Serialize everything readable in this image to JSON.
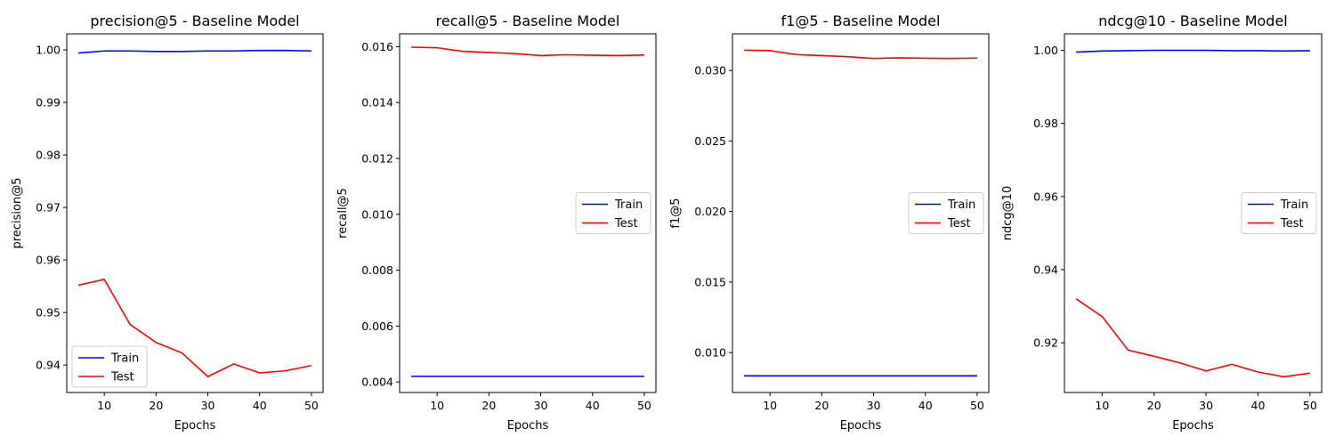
{
  "chart_data": [
    {
      "type": "line",
      "title": "precision@5 - Baseline Model",
      "xlabel": "Epochs",
      "ylabel": "precision@5",
      "x": [
        5,
        10,
        15,
        20,
        25,
        30,
        35,
        40,
        45,
        50
      ],
      "xlim": [
        2.75,
        52.25
      ],
      "ylim": [
        0.93477,
        1.00306
      ],
      "xticks": [
        "10",
        "20",
        "30",
        "40",
        "50"
      ],
      "yticks": [
        "0.94",
        "0.95",
        "0.96",
        "0.97",
        "0.98",
        "0.99",
        "1.00"
      ],
      "legend_position": "lower-left",
      "series": [
        {
          "name": "Train",
          "color": "#0000ff",
          "values": [
            0.9994,
            0.9998,
            0.9998,
            0.9997,
            0.9997,
            0.9998,
            0.9998,
            0.9999,
            0.9999,
            0.9998
          ]
        },
        {
          "name": "Test",
          "color": "#ff0000",
          "values": [
            0.9552,
            0.9563,
            0.9477,
            0.9443,
            0.9423,
            0.9378,
            0.9402,
            0.9385,
            0.9389,
            0.9399
          ]
        }
      ]
    },
    {
      "type": "line",
      "title": "recall@5 - Baseline Model",
      "xlabel": "Epochs",
      "ylabel": "recall@5",
      "x": [
        5,
        10,
        15,
        20,
        25,
        30,
        35,
        40,
        45,
        50
      ],
      "xlim": [
        2.75,
        52.25
      ],
      "ylim": [
        0.003623,
        0.016458
      ],
      "xticks": [
        "10",
        "20",
        "30",
        "40",
        "50"
      ],
      "yticks": [
        "0.004",
        "0.006",
        "0.008",
        "0.010",
        "0.012",
        "0.014",
        "0.016"
      ],
      "legend_position": "center-right",
      "series": [
        {
          "name": "Train",
          "color": "#0000ff",
          "values": [
            0.0042,
            0.0042,
            0.0042,
            0.0042,
            0.0042,
            0.0042,
            0.0042,
            0.0042,
            0.0042,
            0.0042
          ]
        },
        {
          "name": "Test",
          "color": "#ff0000",
          "values": [
            0.01598,
            0.01596,
            0.01583,
            0.01579,
            0.01575,
            0.01568,
            0.01571,
            0.01569,
            0.01568,
            0.0157
          ]
        }
      ]
    },
    {
      "type": "line",
      "title": "f1@5 - Baseline Model",
      "xlabel": "Epochs",
      "ylabel": "f1@5",
      "x": [
        5,
        10,
        15,
        20,
        25,
        30,
        35,
        40,
        45,
        50
      ],
      "xlim": [
        2.75,
        52.25
      ],
      "ylim": [
        0.00717,
        0.0326
      ],
      "xticks": [
        "10",
        "20",
        "30",
        "40",
        "50"
      ],
      "yticks": [
        "0.010",
        "0.015",
        "0.020",
        "0.025",
        "0.030"
      ],
      "legend_position": "center-right",
      "series": [
        {
          "name": "Train",
          "color": "#0000ff",
          "values": [
            0.00835,
            0.00835,
            0.00835,
            0.00835,
            0.00835,
            0.00835,
            0.00835,
            0.00835,
            0.00835,
            0.00835
          ]
        },
        {
          "name": "Test",
          "color": "#ff0000",
          "values": [
            0.03144,
            0.03141,
            0.03113,
            0.03106,
            0.03098,
            0.03085,
            0.0309,
            0.03087,
            0.03085,
            0.03088
          ]
        }
      ]
    },
    {
      "type": "line",
      "title": "ndcg@10 - Baseline Model",
      "xlabel": "Epochs",
      "ylabel": "ndcg@10",
      "x": [
        5,
        10,
        15,
        20,
        25,
        30,
        35,
        40,
        45,
        50
      ],
      "xlim": [
        2.75,
        52.25
      ],
      "ylim": [
        0.9064,
        1.0045
      ],
      "xticks": [
        "10",
        "20",
        "30",
        "40",
        "50"
      ],
      "yticks": [
        "0.92",
        "0.94",
        "0.96",
        "0.98",
        "1.00"
      ],
      "legend_position": "center-right",
      "series": [
        {
          "name": "Train",
          "color": "#0000ff",
          "values": [
            0.9995,
            0.9998,
            0.9999,
            1.0,
            1.0,
            1.0,
            0.9999,
            0.9999,
            0.9998,
            0.9999
          ]
        },
        {
          "name": "Test",
          "color": "#ff0000",
          "values": [
            0.932,
            0.9272,
            0.918,
            0.9163,
            0.9145,
            0.9123,
            0.9141,
            0.912,
            0.9107,
            0.9117
          ]
        }
      ]
    }
  ]
}
